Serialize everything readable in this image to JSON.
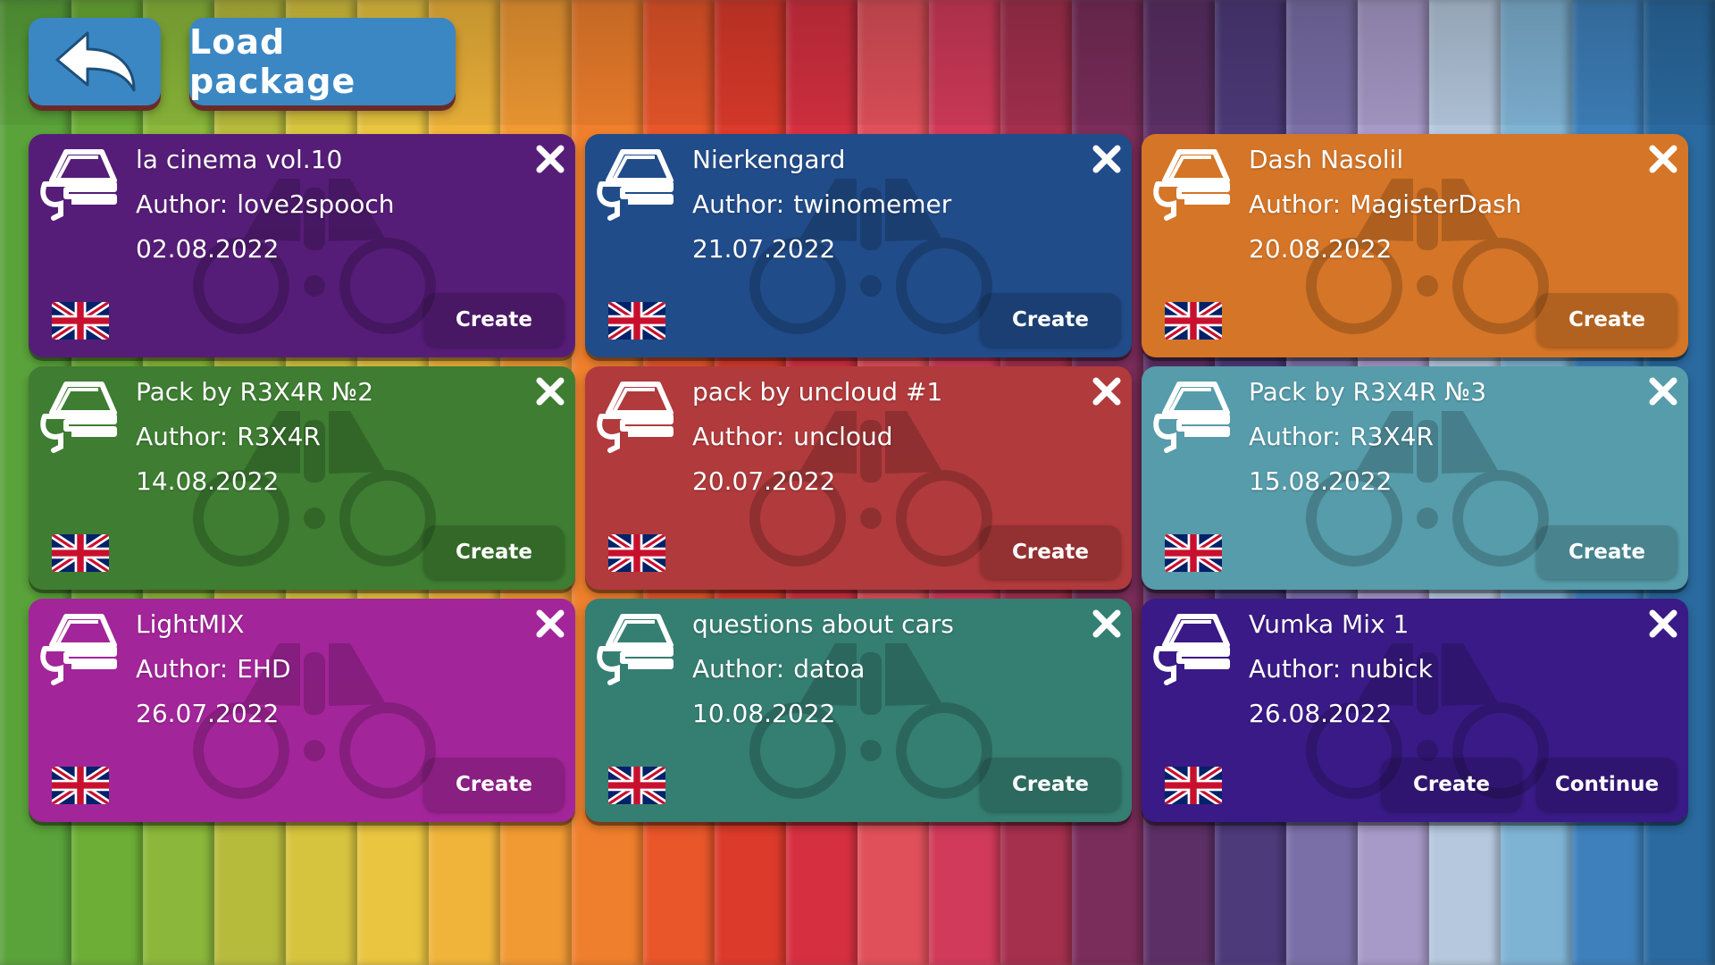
{
  "toolbar": {
    "back_icon": "back-arrow-icon",
    "load_package_label": "Load package"
  },
  "background_stripes": [
    "#5aa33a",
    "#6cae36",
    "#8bb83a",
    "#b7bb3c",
    "#d7c43e",
    "#e9c540",
    "#f0b43a",
    "#f19a33",
    "#ef7f2c",
    "#e8562a",
    "#dc3a2b",
    "#d63040",
    "#e0505a",
    "#d13a5a",
    "#a5304e",
    "#7a2d5a",
    "#5c3066",
    "#4d3a7a",
    "#7b6fa8",
    "#a79ac8",
    "#b5c8de",
    "#7fb3d4",
    "#3e80bb",
    "#2a6aa0"
  ],
  "packages": [
    {
      "title": "la cinema vol.10",
      "author_label": "Author:",
      "author": "love2spooch",
      "date": "02.08.2022",
      "color": "#561d78",
      "flag_icon": "uk-flag-icon",
      "create_label": "Create",
      "continue_label": null
    },
    {
      "title": "Nierkengard",
      "author_label": "Author:",
      "author": "twinomemer",
      "date": "21.07.2022",
      "color": "#214c8a",
      "flag_icon": "uk-flag-icon",
      "create_label": "Create",
      "continue_label": null
    },
    {
      "title": "Dash Nasolil",
      "author_label": "Author:",
      "author": "MagisterDash",
      "date": "20.08.2022",
      "color": "#d57527",
      "flag_icon": "uk-flag-icon",
      "create_label": "Create",
      "continue_label": null
    },
    {
      "title": "Pack by R3X4R №2",
      "author_label": "Author:",
      "author": "R3X4R",
      "date": "14.08.2022",
      "color": "#3e7d32",
      "flag_icon": "uk-flag-icon",
      "create_label": "Create",
      "continue_label": null
    },
    {
      "title": "pack by uncloud #1",
      "author_label": "Author:",
      "author": "uncloud",
      "date": "20.07.2022",
      "color": "#b03a3c",
      "flag_icon": "uk-flag-icon",
      "create_label": "Create",
      "continue_label": null
    },
    {
      "title": "Pack by R3X4R №3",
      "author_label": "Author:",
      "author": "R3X4R",
      "date": "15.08.2022",
      "color": "#569caa",
      "flag_icon": "uk-flag-icon",
      "create_label": "Create",
      "continue_label": null
    },
    {
      "title": "LightMIX",
      "author_label": "Author:",
      "author": "EHD",
      "date": "26.07.2022",
      "color": "#a3259a",
      "flag_icon": "uk-flag-icon",
      "create_label": "Create",
      "continue_label": null
    },
    {
      "title": "questions about cars",
      "author_label": "Author:",
      "author": "datoa",
      "date": "10.08.2022",
      "color": "#357e72",
      "flag_icon": "uk-flag-icon",
      "create_label": "Create",
      "continue_label": null
    },
    {
      "title": "Vumka Mix 1",
      "author_label": "Author:",
      "author": "nubick",
      "date": "26.08.2022",
      "color": "#3a1a86",
      "flag_icon": "uk-flag-icon",
      "create_label": "Create",
      "continue_label": "Continue"
    }
  ]
}
